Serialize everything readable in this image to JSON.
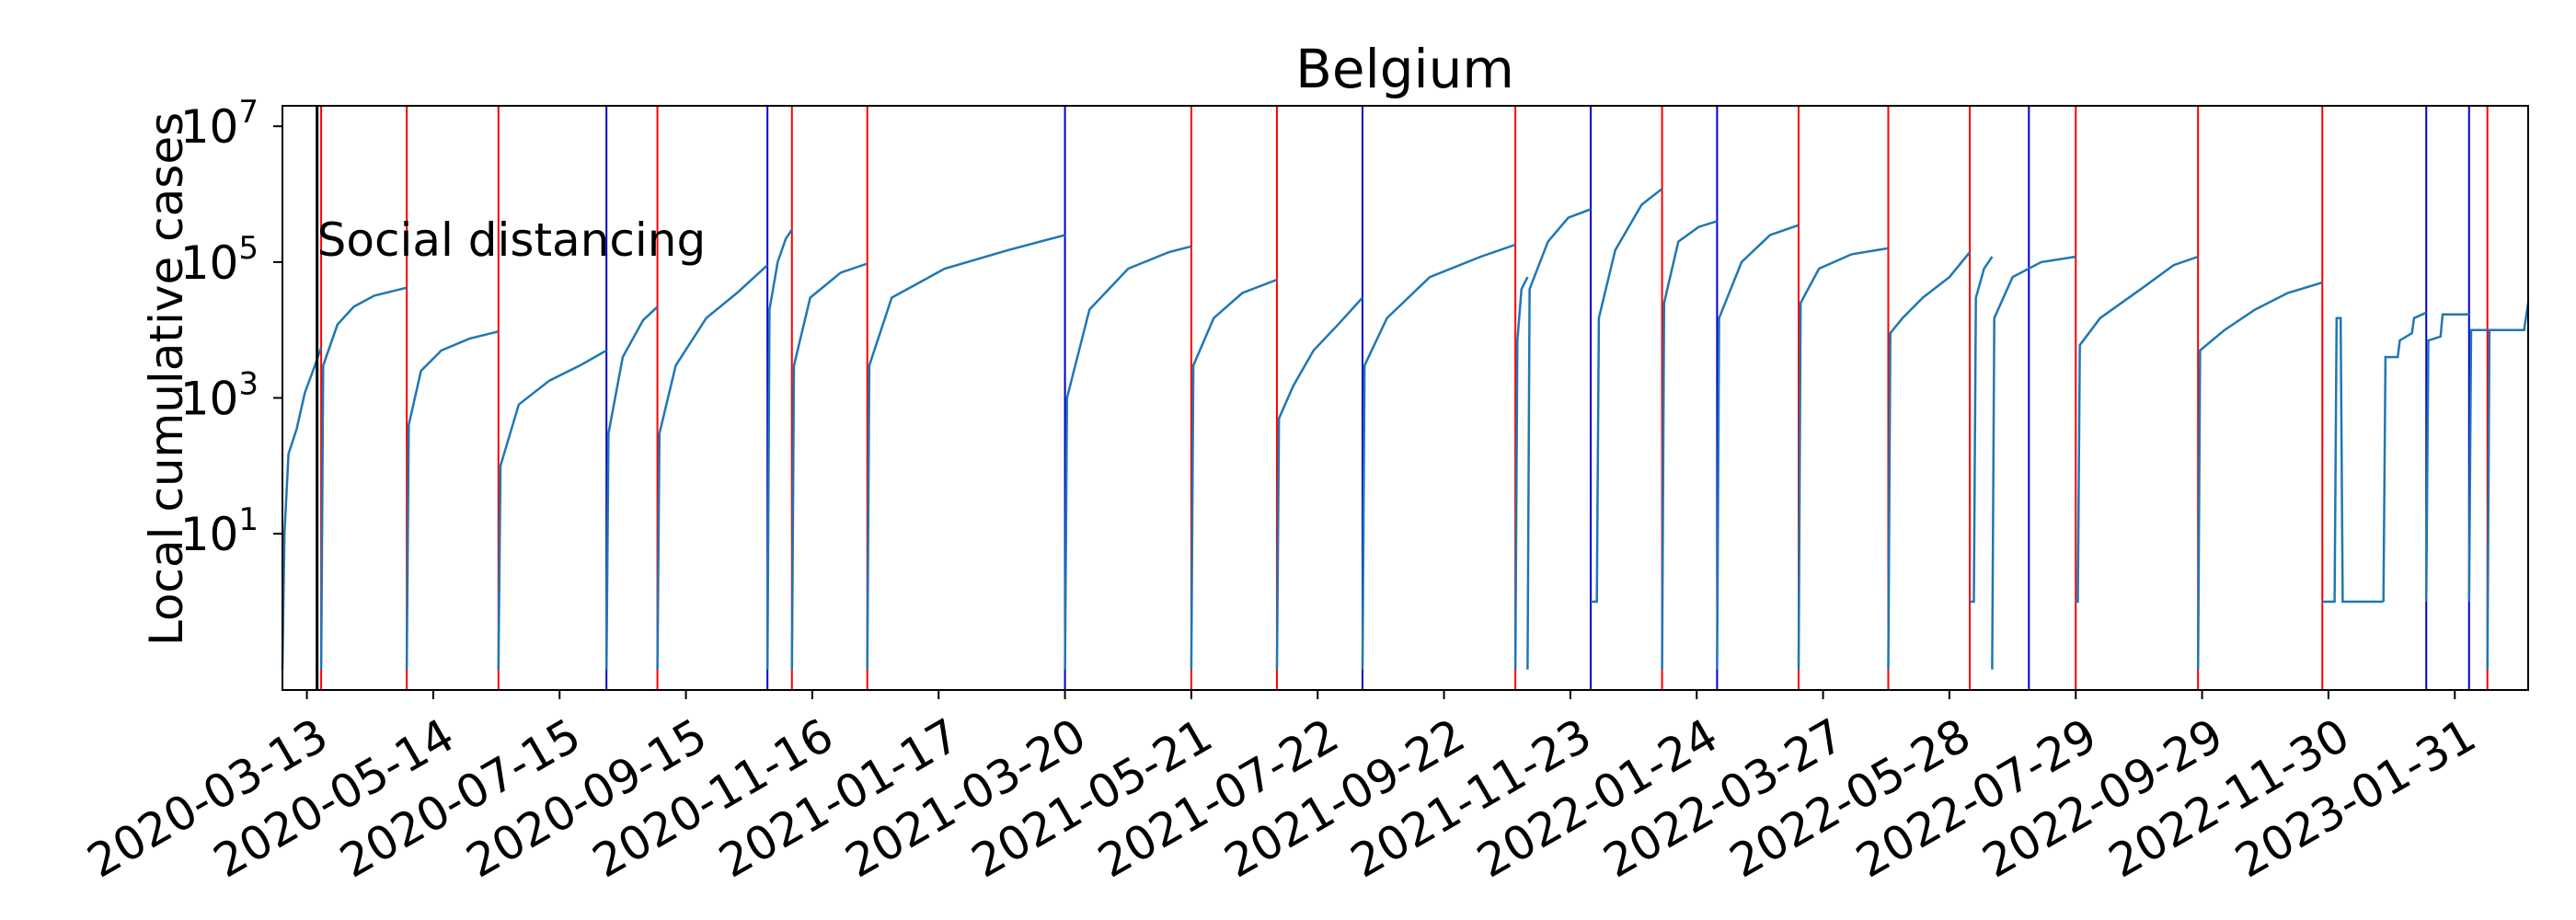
{
  "chart_data": {
    "type": "line",
    "title": "Belgium",
    "xlabel": "",
    "ylabel": "Local cumulative cases",
    "yscale": "log",
    "ylim": [
      0.05,
      20000000
    ],
    "xlim": [
      "2020-03-01",
      "2023-03-08"
    ],
    "y_ticks": [
      {
        "value": 10,
        "base": "10",
        "exp": "1"
      },
      {
        "value": 1000,
        "base": "10",
        "exp": "3"
      },
      {
        "value": 100000,
        "base": "10",
        "exp": "5"
      },
      {
        "value": 10000000,
        "base": "10",
        "exp": "7"
      }
    ],
    "x_ticks": [
      "2020-03-13",
      "2020-05-14",
      "2020-07-15",
      "2020-09-15",
      "2020-11-16",
      "2021-01-17",
      "2021-03-20",
      "2021-05-21",
      "2021-07-22",
      "2021-09-22",
      "2021-11-23",
      "2022-01-24",
      "2022-03-27",
      "2022-05-28",
      "2022-07-29",
      "2022-09-29",
      "2022-11-30",
      "2023-01-31"
    ],
    "grid": false,
    "line_color": "#1f77b4",
    "annotation": {
      "text": "Social distancing",
      "date": "2020-03-18",
      "color": "#000000"
    },
    "red_lines": [
      "2020-03-20",
      "2020-05-01",
      "2020-06-15",
      "2020-09-01",
      "2020-11-06",
      "2020-12-13",
      "2021-05-21",
      "2021-07-02",
      "2021-10-27",
      "2022-01-07",
      "2022-03-15",
      "2022-04-28",
      "2022-06-07",
      "2022-07-29",
      "2022-09-27",
      "2022-11-27",
      "2023-02-16"
    ],
    "blue_lines": [
      "2020-08-07",
      "2020-10-25",
      "2021-03-20",
      "2021-08-13",
      "2021-12-03",
      "2022-02-03",
      "2022-07-06",
      "2023-01-17",
      "2023-02-07"
    ],
    "segments": [
      {
        "start": "2020-03-01",
        "end": "2020-03-20",
        "points": [
          [
            "2020-03-01",
            0.1
          ],
          [
            "2020-03-02",
            10
          ],
          [
            "2020-03-04",
            150
          ],
          [
            "2020-03-08",
            350
          ],
          [
            "2020-03-12",
            1200
          ],
          [
            "2020-03-16",
            2500
          ],
          [
            "2020-03-20",
            5500
          ]
        ]
      },
      {
        "start": "2020-03-20",
        "end": "2020-05-01",
        "points": [
          [
            "2020-03-20",
            0.1
          ],
          [
            "2020-03-21",
            3000
          ],
          [
            "2020-03-28",
            12000
          ],
          [
            "2020-04-05",
            22000
          ],
          [
            "2020-04-15",
            32000
          ],
          [
            "2020-05-01",
            42000
          ]
        ]
      },
      {
        "start": "2020-05-01",
        "end": "2020-06-15",
        "points": [
          [
            "2020-05-01",
            0.1
          ],
          [
            "2020-05-02",
            400
          ],
          [
            "2020-05-08",
            2500
          ],
          [
            "2020-05-18",
            5000
          ],
          [
            "2020-06-01",
            7500
          ],
          [
            "2020-06-15",
            9500
          ]
        ]
      },
      {
        "start": "2020-06-15",
        "end": "2020-08-07",
        "points": [
          [
            "2020-06-15",
            0.1
          ],
          [
            "2020-06-16",
            100
          ],
          [
            "2020-06-25",
            800
          ],
          [
            "2020-07-10",
            1800
          ],
          [
            "2020-07-25",
            3000
          ],
          [
            "2020-08-07",
            5000
          ]
        ]
      },
      {
        "start": "2020-08-07",
        "end": "2020-09-01",
        "points": [
          [
            "2020-08-07",
            0.1
          ],
          [
            "2020-08-08",
            300
          ],
          [
            "2020-08-15",
            4000
          ],
          [
            "2020-08-25",
            14000
          ],
          [
            "2020-09-01",
            22000
          ]
        ]
      },
      {
        "start": "2020-09-01",
        "end": "2020-10-25",
        "points": [
          [
            "2020-09-01",
            0.1
          ],
          [
            "2020-09-02",
            300
          ],
          [
            "2020-09-10",
            3000
          ],
          [
            "2020-09-25",
            15000
          ],
          [
            "2020-10-10",
            35000
          ],
          [
            "2020-10-25",
            90000
          ]
        ]
      },
      {
        "start": "2020-10-25",
        "end": "2020-11-06",
        "points": [
          [
            "2020-10-25",
            0.1
          ],
          [
            "2020-10-26",
            20000
          ],
          [
            "2020-10-30",
            100000
          ],
          [
            "2020-11-03",
            220000
          ],
          [
            "2020-11-06",
            300000
          ]
        ]
      },
      {
        "start": "2020-11-06",
        "end": "2020-12-13",
        "points": [
          [
            "2020-11-06",
            0.1
          ],
          [
            "2020-11-07",
            3000
          ],
          [
            "2020-11-15",
            30000
          ],
          [
            "2020-11-30",
            70000
          ],
          [
            "2020-12-13",
            95000
          ]
        ]
      },
      {
        "start": "2020-12-13",
        "end": "2021-03-20",
        "points": [
          [
            "2020-12-13",
            0.1
          ],
          [
            "2020-12-14",
            3000
          ],
          [
            "2020-12-25",
            30000
          ],
          [
            "2021-01-20",
            80000
          ],
          [
            "2021-02-20",
            150000
          ],
          [
            "2021-03-20",
            250000
          ]
        ]
      },
      {
        "start": "2021-03-20",
        "end": "2021-05-21",
        "points": [
          [
            "2021-03-20",
            0.1
          ],
          [
            "2021-03-21",
            1000
          ],
          [
            "2021-04-01",
            20000
          ],
          [
            "2021-04-20",
            80000
          ],
          [
            "2021-05-10",
            140000
          ],
          [
            "2021-05-21",
            170000
          ]
        ]
      },
      {
        "start": "2021-05-21",
        "end": "2021-07-02",
        "points": [
          [
            "2021-05-21",
            0.1
          ],
          [
            "2021-05-22",
            3000
          ],
          [
            "2021-06-01",
            15000
          ],
          [
            "2021-06-15",
            35000
          ],
          [
            "2021-07-02",
            55000
          ]
        ]
      },
      {
        "start": "2021-07-02",
        "end": "2021-08-13",
        "points": [
          [
            "2021-07-02",
            0.1
          ],
          [
            "2021-07-03",
            500
          ],
          [
            "2021-07-10",
            1500
          ],
          [
            "2021-07-20",
            5000
          ],
          [
            "2021-08-01",
            12000
          ],
          [
            "2021-08-13",
            30000
          ]
        ]
      },
      {
        "start": "2021-08-13",
        "end": "2021-10-27",
        "points": [
          [
            "2021-08-13",
            0.1
          ],
          [
            "2021-08-14",
            3000
          ],
          [
            "2021-08-25",
            15000
          ],
          [
            "2021-09-15",
            60000
          ],
          [
            "2021-10-10",
            120000
          ],
          [
            "2021-10-27",
            180000
          ]
        ]
      },
      {
        "start": "2021-10-27",
        "end": "2021-11-02",
        "points": [
          [
            "2021-10-27",
            0.1
          ],
          [
            "2021-10-28",
            7000
          ],
          [
            "2021-10-30",
            40000
          ],
          [
            "2021-11-02",
            60000
          ]
        ]
      },
      {
        "start": "2021-11-02",
        "end": "2021-12-03",
        "points": [
          [
            "2021-11-02",
            0.1
          ],
          [
            "2021-11-03",
            40000
          ],
          [
            "2021-11-12",
            200000
          ],
          [
            "2021-11-22",
            450000
          ],
          [
            "2021-12-03",
            600000
          ]
        ]
      },
      {
        "start": "2021-12-03",
        "end": "2022-01-07",
        "points": [
          [
            "2021-12-03",
            1
          ],
          [
            "2021-12-06",
            1
          ],
          [
            "2021-12-07",
            15000
          ],
          [
            "2021-12-15",
            150000
          ],
          [
            "2021-12-28",
            700000
          ],
          [
            "2022-01-07",
            1200000
          ]
        ]
      },
      {
        "start": "2022-01-07",
        "end": "2022-02-03",
        "points": [
          [
            "2022-01-07",
            0.1
          ],
          [
            "2022-01-08",
            25000
          ],
          [
            "2022-01-15",
            200000
          ],
          [
            "2022-01-25",
            330000
          ],
          [
            "2022-02-03",
            400000
          ]
        ]
      },
      {
        "start": "2022-02-03",
        "end": "2022-03-15",
        "points": [
          [
            "2022-02-03",
            0.1
          ],
          [
            "2022-02-04",
            15000
          ],
          [
            "2022-02-15",
            100000
          ],
          [
            "2022-03-01",
            250000
          ],
          [
            "2022-03-15",
            350000
          ]
        ]
      },
      {
        "start": "2022-03-15",
        "end": "2022-04-28",
        "points": [
          [
            "2022-03-15",
            0.1
          ],
          [
            "2022-03-16",
            25000
          ],
          [
            "2022-03-25",
            80000
          ],
          [
            "2022-04-10",
            130000
          ],
          [
            "2022-04-28",
            160000
          ]
        ]
      },
      {
        "start": "2022-04-28",
        "end": "2022-06-07",
        "points": [
          [
            "2022-04-28",
            0.1
          ],
          [
            "2022-04-29",
            9000
          ],
          [
            "2022-05-05",
            15000
          ],
          [
            "2022-05-15",
            30000
          ],
          [
            "2022-05-28",
            60000
          ],
          [
            "2022-06-07",
            140000
          ]
        ]
      },
      {
        "start": "2022-06-07",
        "end": "2022-06-18",
        "points": [
          [
            "2022-06-07",
            1
          ],
          [
            "2022-06-09",
            1
          ],
          [
            "2022-06-10",
            30000
          ],
          [
            "2022-06-14",
            80000
          ],
          [
            "2022-06-18",
            120000
          ]
        ]
      },
      {
        "start": "2022-06-18",
        "end": "2022-07-29",
        "points": [
          [
            "2022-06-18",
            0.1
          ],
          [
            "2022-06-19",
            15000
          ],
          [
            "2022-06-28",
            60000
          ],
          [
            "2022-07-12",
            100000
          ],
          [
            "2022-07-29",
            120000
          ]
        ]
      },
      {
        "start": "2022-07-29",
        "end": "2022-09-27",
        "points": [
          [
            "2022-07-29",
            1
          ],
          [
            "2022-07-30",
            1
          ],
          [
            "2022-07-31",
            6000
          ],
          [
            "2022-08-10",
            15000
          ],
          [
            "2022-08-30",
            40000
          ],
          [
            "2022-09-15",
            90000
          ],
          [
            "2022-09-27",
            120000
          ]
        ]
      },
      {
        "start": "2022-09-27",
        "end": "2022-11-27",
        "points": [
          [
            "2022-09-27",
            0.1
          ],
          [
            "2022-09-28",
            5000
          ],
          [
            "2022-10-10",
            10000
          ],
          [
            "2022-10-25",
            20000
          ],
          [
            "2022-11-10",
            35000
          ],
          [
            "2022-11-27",
            50000
          ]
        ]
      },
      {
        "start": "2022-11-27",
        "end": "2022-12-27",
        "points": [
          [
            "2022-11-27",
            1
          ],
          [
            "2022-12-03",
            1
          ],
          [
            "2022-12-04",
            15000
          ],
          [
            "2022-12-06",
            15000
          ],
          [
            "2022-12-07",
            1
          ],
          [
            "2022-12-27",
            1
          ]
        ]
      },
      {
        "start": "2022-12-27",
        "end": "2023-01-17",
        "points": [
          [
            "2022-12-27",
            1
          ],
          [
            "2022-12-28",
            4000
          ],
          [
            "2023-01-03",
            4000
          ],
          [
            "2023-01-04",
            7000
          ],
          [
            "2023-01-10",
            9000
          ],
          [
            "2023-01-11",
            15000
          ],
          [
            "2023-01-17",
            18000
          ]
        ]
      },
      {
        "start": "2023-01-17",
        "end": "2023-02-07",
        "points": [
          [
            "2023-01-17",
            1
          ],
          [
            "2023-01-18",
            7000
          ],
          [
            "2023-01-24",
            8000
          ],
          [
            "2023-01-25",
            17000
          ],
          [
            "2023-02-07",
            17000
          ]
        ]
      },
      {
        "start": "2023-02-07",
        "end": "2023-02-16",
        "points": [
          [
            "2023-02-07",
            1
          ],
          [
            "2023-02-08",
            10000
          ],
          [
            "2023-02-16",
            10000
          ]
        ]
      },
      {
        "start": "2023-02-16",
        "end": "2023-03-08",
        "points": [
          [
            "2023-02-16",
            0.1
          ],
          [
            "2023-02-17",
            10000
          ],
          [
            "2023-03-06",
            10000
          ],
          [
            "2023-03-08",
            25000
          ]
        ]
      }
    ]
  }
}
